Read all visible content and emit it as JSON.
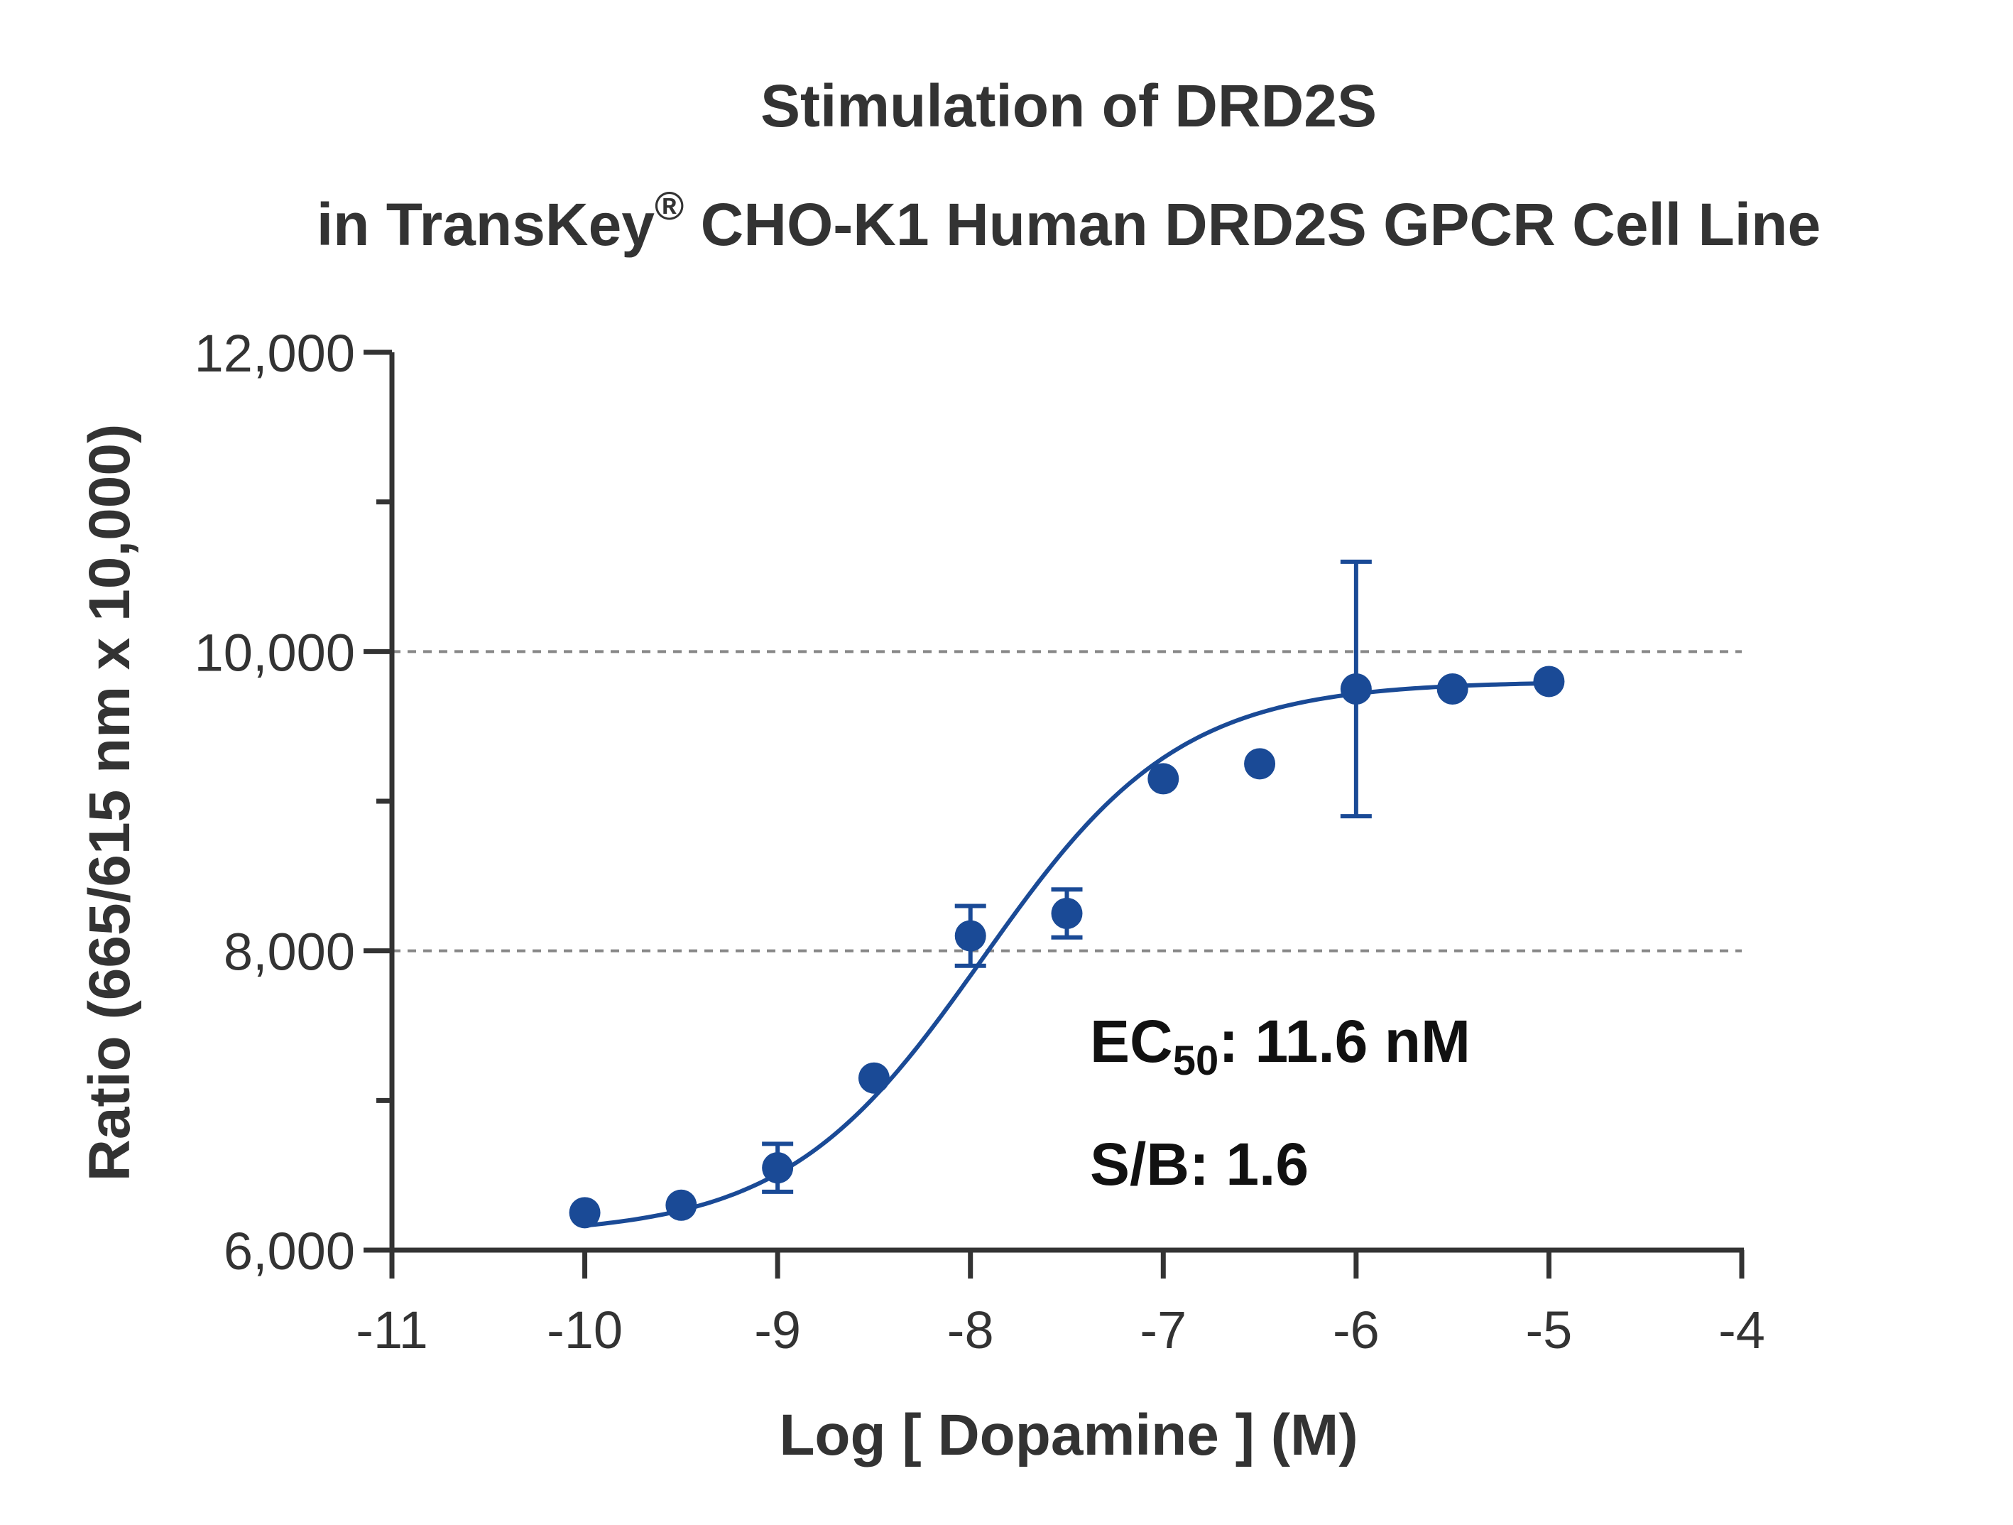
{
  "chart_data": {
    "type": "scatter",
    "title_line1": "Stimulation of  DRD2S",
    "title_line2_prefix": "in TransKey",
    "title_line2_mark": "®",
    "title_line2_suffix": " CHO-K1 Human DRD2S GPCR Cell Line",
    "xlabel": "Log [ Dopamine ]  (M)",
    "ylabel": "Ratio (665/615 nm x 10,000)",
    "xlim": [
      -11,
      -4
    ],
    "ylim": [
      6000,
      12000
    ],
    "x_ticks": [
      -11,
      -10,
      -9,
      -8,
      -7,
      -6,
      -5,
      -4
    ],
    "x_tick_labels": [
      "-11",
      "-10",
      "-9",
      "-8",
      "-7",
      "-6",
      "-5",
      "-4"
    ],
    "y_ticks_labeled": [
      6000,
      8000,
      10000,
      12000
    ],
    "y_tick_labels": [
      "6,000",
      "8,000",
      "10,000",
      "12,000"
    ],
    "y_ticks_minor": [
      7000,
      9000,
      11000
    ],
    "gridlines_y": [
      8000,
      10000
    ],
    "series_color": "#1a4a96",
    "points": [
      {
        "x": -10.0,
        "y": 6250,
        "err": 0
      },
      {
        "x": -9.5,
        "y": 6300,
        "err": 0
      },
      {
        "x": -9.0,
        "y": 6550,
        "err": 160
      },
      {
        "x": -8.5,
        "y": 7150,
        "err": 0
      },
      {
        "x": -8.0,
        "y": 8100,
        "err": 200
      },
      {
        "x": -7.5,
        "y": 8250,
        "err": 160
      },
      {
        "x": -7.0,
        "y": 9150,
        "err": 0
      },
      {
        "x": -6.5,
        "y": 9250,
        "err": 0
      },
      {
        "x": -6.0,
        "y": 9750,
        "err": 850
      },
      {
        "x": -5.5,
        "y": 9750,
        "err": 0
      },
      {
        "x": -5.0,
        "y": 9800,
        "err": 0
      }
    ],
    "fit": {
      "bottom": 6100,
      "top": 9800,
      "logEC50": -7.936,
      "hill": 0.85
    },
    "annotation_ec_prefix": "EC",
    "annotation_ec_sub": "50",
    "annotation_ec_value": ": 11.6 nM",
    "annotation_sb": "S/B: 1.6"
  }
}
